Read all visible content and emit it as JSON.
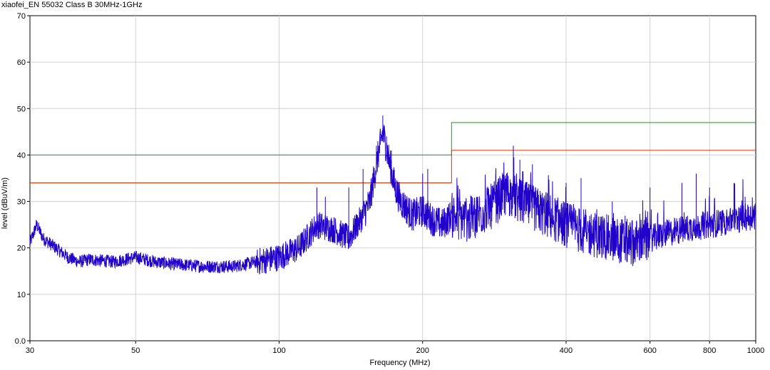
{
  "title": "xiaofei_EN 55032 Class B 30MHz-1GHz",
  "chart_data": {
    "type": "line",
    "title": "xiaofei_EN 55032 Class B 30MHz-1GHz",
    "xlabel": "Frequency (MHz)",
    "ylabel": "level (dBuV/m)",
    "xscale": "log",
    "xlim": [
      30,
      1000
    ],
    "ylim": [
      0,
      70
    ],
    "grid": true,
    "x_ticks": [
      30,
      50,
      100,
      200,
      400,
      600,
      800,
      1000
    ],
    "x_tick_labels": [
      "30",
      "50",
      "100",
      "200",
      "400",
      "600",
      "800",
      "1000"
    ],
    "y_ticks": [
      0,
      10,
      20,
      30,
      40,
      50,
      60,
      70
    ],
    "y_tick_labels": [
      "0.0",
      "10",
      "20",
      "30",
      "40",
      "50",
      "60",
      "70"
    ],
    "colors": {
      "limit_qp": "#00b000",
      "limit_2": "#e03000",
      "measurement": "#2200cc",
      "grid": "#d0d0d0"
    },
    "series": [
      {
        "key": "limit_qp",
        "x": [
          30,
          230,
          230,
          1000
        ],
        "y": [
          40,
          40,
          47,
          47
        ]
      },
      {
        "key": "limit_2",
        "x": [
          30,
          230,
          230,
          1000
        ],
        "y": [
          34,
          34,
          41,
          41
        ]
      },
      {
        "key": "measurement",
        "x": [
          30,
          31,
          32,
          34,
          36,
          38,
          40,
          45,
          50,
          55,
          60,
          70,
          80,
          90,
          100,
          110,
          120,
          130,
          140,
          150,
          155,
          160,
          165,
          170,
          175,
          180,
          190,
          200,
          210,
          220,
          230,
          250,
          280,
          300,
          320,
          350,
          400,
          450,
          500,
          550,
          600,
          700,
          800,
          900,
          1000
        ],
        "y": [
          21,
          25,
          22,
          20,
          18,
          17,
          17.5,
          17,
          18,
          17,
          16.5,
          16,
          16,
          17,
          18,
          20,
          25,
          24,
          22,
          27,
          30,
          38,
          45,
          39,
          33,
          30,
          27,
          28,
          26,
          25,
          27,
          26,
          29,
          32,
          30,
          28,
          25,
          23,
          22,
          21,
          22,
          24,
          25,
          26,
          27
        ],
        "peaks_x": [
          31,
          120,
          125,
          140,
          150,
          160,
          163,
          165,
          168,
          172,
          200,
          205,
          260,
          300,
          310,
          320,
          340,
          400,
          430,
          500,
          600,
          700,
          750,
          800,
          900,
          950
        ],
        "peaks_y": [
          25.5,
          33,
          31,
          33,
          37,
          42,
          44,
          48.5,
          44,
          41,
          36,
          37,
          31,
          36,
          42,
          39,
          38,
          34,
          35,
          30,
          33,
          34,
          36,
          33,
          34,
          31
        ]
      }
    ]
  }
}
